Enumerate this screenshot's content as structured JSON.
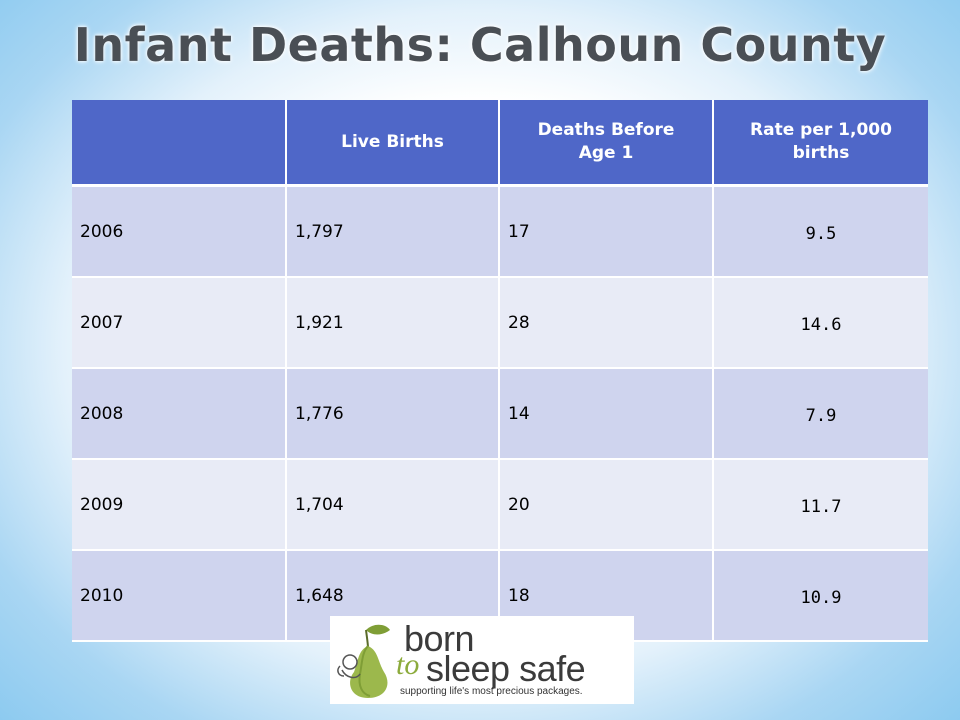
{
  "title": "Infant Deaths: Calhoun County",
  "table": {
    "headers": [
      "",
      "Live Births",
      "Deaths Before Age 1",
      "Rate per 1,000 births"
    ],
    "rows": [
      [
        "2006",
        "1,797",
        "17",
        "9.5"
      ],
      [
        "2007",
        "1,921",
        "28",
        "14.6"
      ],
      [
        "2008",
        "1,776",
        "14",
        "7.9"
      ],
      [
        "2009",
        "1,704",
        "20",
        "11.7"
      ],
      [
        "2010",
        "1,648",
        "18",
        "10.9"
      ]
    ]
  },
  "logo": {
    "line1": "born",
    "line2_accent": "to",
    "line2": "sleep safe",
    "tagline": "supporting life's most precious packages."
  },
  "colors": {
    "header_bg": "#4f67c8",
    "row_dark": "#cfd4ee",
    "row_light": "#e8ebf6",
    "title": "#4a4f55",
    "logo_green": "#8cab3c"
  }
}
